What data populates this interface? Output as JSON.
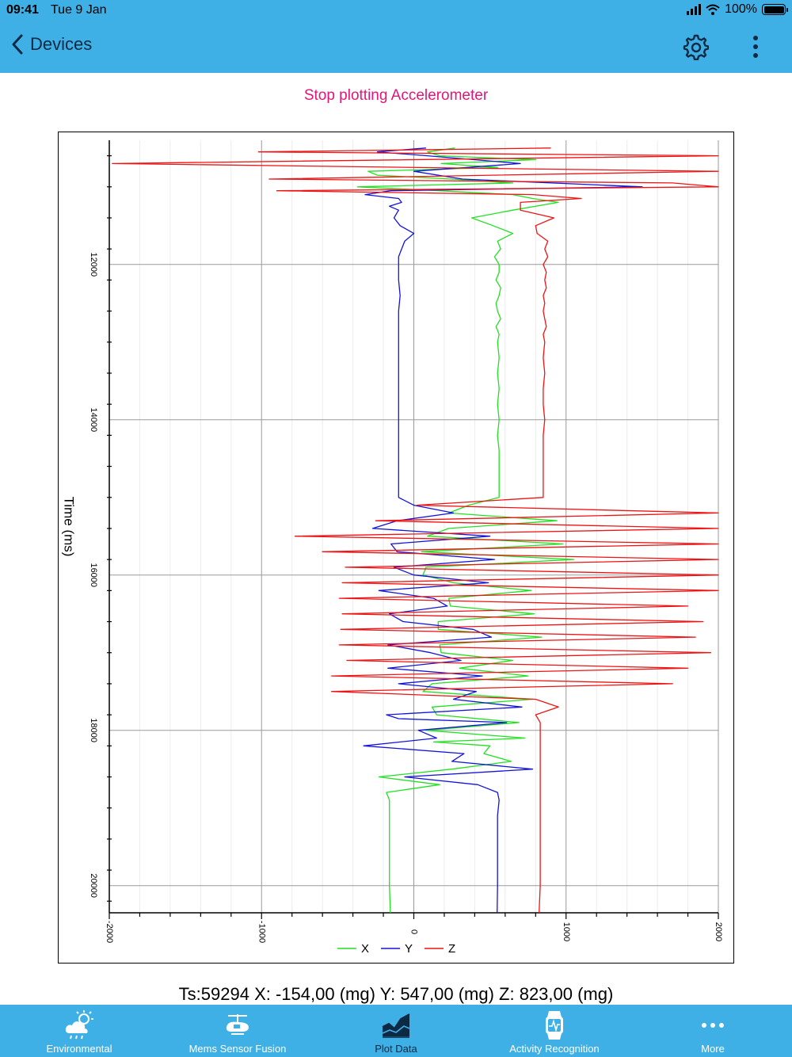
{
  "status": {
    "time": "09:41",
    "date": "Tue 9 Jan",
    "battery": "100%"
  },
  "nav": {
    "back_label": "Devices",
    "settings_icon": "gear-icon",
    "more_icon": "vertical-dots-icon"
  },
  "plot_toggle_label": "Stop plotting Accelerometer",
  "readout": "Ts:59294 X: -154,00 (mg) Y:  547,00 (mg) Z:  823,00 (mg)",
  "tabs": [
    {
      "label": "Environmental",
      "icon": "weather-cloud-icon"
    },
    {
      "label": "Mems Sensor Fusion",
      "icon": "drone-icon"
    },
    {
      "label": "Plot Data",
      "icon": "area-chart-icon",
      "active": true
    },
    {
      "label": "Activity Recognition",
      "icon": "wristband-icon"
    },
    {
      "label": "More",
      "icon": "more-dots-icon"
    }
  ],
  "chart_data": {
    "type": "line",
    "title": "",
    "xlabel": "",
    "ylabel": "Time (ms)",
    "value_axis": {
      "range": [
        -2000,
        2000
      ],
      "ticks": [
        "-2000",
        "-1000",
        "0",
        "1000",
        "2000"
      ]
    },
    "time_axis": {
      "range": [
        10400,
        20350
      ],
      "ticks": [
        "12000",
        "14000",
        "16000",
        "18000",
        "20000"
      ]
    },
    "grid": true,
    "legend_position": "bottom",
    "colors": {
      "X": "#22e022",
      "Y": "#1414d8",
      "Z": "#ee1414"
    },
    "series": [
      {
        "name": "X",
        "points": [
          [
            10500,
            270
          ],
          [
            10550,
            90
          ],
          [
            10600,
            170
          ],
          [
            10650,
            800
          ],
          [
            10700,
            180
          ],
          [
            10750,
            550
          ],
          [
            10800,
            -300
          ],
          [
            10850,
            -240
          ],
          [
            10900,
            250
          ],
          [
            10950,
            650
          ],
          [
            11000,
            -370
          ],
          [
            11050,
            170
          ],
          [
            11100,
            650
          ],
          [
            11150,
            780
          ],
          [
            11200,
            950
          ],
          [
            11300,
            650
          ],
          [
            11400,
            380
          ],
          [
            11500,
            520
          ],
          [
            11600,
            650
          ],
          [
            11700,
            550
          ],
          [
            11800,
            570
          ],
          [
            11900,
            530
          ],
          [
            12000,
            560
          ],
          [
            12100,
            560
          ],
          [
            12200,
            540
          ],
          [
            12300,
            570
          ],
          [
            12400,
            560
          ],
          [
            12500,
            540
          ],
          [
            12600,
            550
          ],
          [
            12700,
            570
          ],
          [
            12800,
            540
          ],
          [
            12900,
            560
          ],
          [
            13000,
            550
          ],
          [
            13200,
            560
          ],
          [
            13400,
            550
          ],
          [
            13600,
            560
          ],
          [
            13800,
            550
          ],
          [
            14000,
            560
          ],
          [
            14200,
            550
          ],
          [
            14400,
            560
          ],
          [
            14600,
            560
          ],
          [
            14800,
            560
          ],
          [
            15000,
            560
          ],
          [
            15100,
            360
          ],
          [
            15200,
            230
          ],
          [
            15300,
            940
          ],
          [
            15400,
            230
          ],
          [
            15500,
            90
          ],
          [
            15600,
            980
          ],
          [
            15700,
            50
          ],
          [
            15800,
            1050
          ],
          [
            15900,
            80
          ],
          [
            16000,
            60
          ],
          [
            16100,
            260
          ],
          [
            16200,
            770
          ],
          [
            16300,
            230
          ],
          [
            16400,
            240
          ],
          [
            16500,
            790
          ],
          [
            16600,
            160
          ],
          [
            16700,
            160
          ],
          [
            16800,
            840
          ],
          [
            16900,
            170
          ],
          [
            17000,
            180
          ],
          [
            17100,
            650
          ],
          [
            17200,
            300
          ],
          [
            17300,
            750
          ],
          [
            17400,
            120
          ],
          [
            17500,
            60
          ],
          [
            17600,
            780
          ],
          [
            17700,
            120
          ],
          [
            17800,
            150
          ],
          [
            17900,
            690
          ],
          [
            18000,
            80
          ],
          [
            18100,
            730
          ],
          [
            18150,
            130
          ],
          [
            18200,
            500
          ],
          [
            18300,
            460
          ],
          [
            18400,
            640
          ],
          [
            18500,
            250
          ],
          [
            18600,
            -230
          ],
          [
            18700,
            170
          ],
          [
            18800,
            -180
          ],
          [
            18900,
            -160
          ],
          [
            19200,
            -160
          ],
          [
            19600,
            -160
          ],
          [
            20000,
            -160
          ],
          [
            20350,
            -154
          ]
        ]
      },
      {
        "name": "Y",
        "points": [
          [
            10500,
            80
          ],
          [
            10550,
            -240
          ],
          [
            10600,
            90
          ],
          [
            10700,
            700
          ],
          [
            10800,
            0
          ],
          [
            10900,
            320
          ],
          [
            11000,
            1500
          ],
          [
            11050,
            -150
          ],
          [
            11100,
            -320
          ],
          [
            11150,
            -100
          ],
          [
            11200,
            -80
          ],
          [
            11250,
            -160
          ],
          [
            11300,
            -100
          ],
          [
            11400,
            -130
          ],
          [
            11500,
            -90
          ],
          [
            11600,
            0
          ],
          [
            11700,
            -60
          ],
          [
            11800,
            -80
          ],
          [
            11900,
            -100
          ],
          [
            12000,
            -100
          ],
          [
            12200,
            -100
          ],
          [
            12400,
            -90
          ],
          [
            12600,
            -100
          ],
          [
            12800,
            -100
          ],
          [
            13000,
            -100
          ],
          [
            13200,
            -100
          ],
          [
            13400,
            -100
          ],
          [
            13600,
            -100
          ],
          [
            13800,
            -100
          ],
          [
            14000,
            -100
          ],
          [
            14200,
            -100
          ],
          [
            14400,
            -100
          ],
          [
            14600,
            -100
          ],
          [
            14800,
            -100
          ],
          [
            15000,
            -100
          ],
          [
            15100,
            0
          ],
          [
            15200,
            260
          ],
          [
            15300,
            -110
          ],
          [
            15400,
            -270
          ],
          [
            15500,
            500
          ],
          [
            15600,
            -150
          ],
          [
            15700,
            -110
          ],
          [
            15800,
            530
          ],
          [
            15900,
            -130
          ],
          [
            16000,
            0
          ],
          [
            16100,
            490
          ],
          [
            16200,
            -230
          ],
          [
            16300,
            130
          ],
          [
            16400,
            220
          ],
          [
            16500,
            -160
          ],
          [
            16600,
            -70
          ],
          [
            16700,
            390
          ],
          [
            16800,
            510
          ],
          [
            16900,
            -170
          ],
          [
            17000,
            110
          ],
          [
            17100,
            310
          ],
          [
            17200,
            -170
          ],
          [
            17300,
            450
          ],
          [
            17400,
            -100
          ],
          [
            17500,
            410
          ],
          [
            17600,
            260
          ],
          [
            17700,
            710
          ],
          [
            17800,
            -180
          ],
          [
            17850,
            -100
          ],
          [
            17900,
            610
          ],
          [
            18000,
            30
          ],
          [
            18100,
            150
          ],
          [
            18200,
            -330
          ],
          [
            18300,
            330
          ],
          [
            18400,
            250
          ],
          [
            18500,
            780
          ],
          [
            18600,
            -60
          ],
          [
            18700,
            420
          ],
          [
            18800,
            550
          ],
          [
            18900,
            560
          ],
          [
            19100,
            550
          ],
          [
            19400,
            550
          ],
          [
            19700,
            550
          ],
          [
            20000,
            550
          ],
          [
            20350,
            547
          ]
        ]
      },
      {
        "name": "Z",
        "points": [
          [
            10500,
            900
          ],
          [
            10550,
            -1020
          ],
          [
            10600,
            2000
          ],
          [
            10700,
            -1980
          ],
          [
            10800,
            2000
          ],
          [
            10900,
            -950
          ],
          [
            10950,
            1700
          ],
          [
            11000,
            2000
          ],
          [
            11050,
            -900
          ],
          [
            11100,
            780
          ],
          [
            11150,
            1100
          ],
          [
            11200,
            700
          ],
          [
            11300,
            700
          ],
          [
            11400,
            920
          ],
          [
            11500,
            800
          ],
          [
            11600,
            810
          ],
          [
            11700,
            880
          ],
          [
            11800,
            860
          ],
          [
            11900,
            880
          ],
          [
            12000,
            850
          ],
          [
            12100,
            870
          ],
          [
            12200,
            860
          ],
          [
            12300,
            870
          ],
          [
            12400,
            850
          ],
          [
            12500,
            860
          ],
          [
            12600,
            850
          ],
          [
            12700,
            860
          ],
          [
            12800,
            870
          ],
          [
            12900,
            850
          ],
          [
            13000,
            860
          ],
          [
            13200,
            850
          ],
          [
            13400,
            860
          ],
          [
            13600,
            850
          ],
          [
            13800,
            850
          ],
          [
            14000,
            860
          ],
          [
            14200,
            850
          ],
          [
            14400,
            850
          ],
          [
            14600,
            850
          ],
          [
            14800,
            850
          ],
          [
            15000,
            850
          ],
          [
            15100,
            20
          ],
          [
            15200,
            2000
          ],
          [
            15300,
            -250
          ],
          [
            15400,
            2000
          ],
          [
            15500,
            -780
          ],
          [
            15600,
            2000
          ],
          [
            15700,
            -600
          ],
          [
            15800,
            2000
          ],
          [
            15900,
            -450
          ],
          [
            16000,
            2000
          ],
          [
            16100,
            -470
          ],
          [
            16200,
            2000
          ],
          [
            16300,
            -490
          ],
          [
            16400,
            1800
          ],
          [
            16500,
            -470
          ],
          [
            16600,
            1900
          ],
          [
            16700,
            -480
          ],
          [
            16800,
            1850
          ],
          [
            16900,
            -490
          ],
          [
            17000,
            1950
          ],
          [
            17100,
            -440
          ],
          [
            17200,
            1800
          ],
          [
            17300,
            -540
          ],
          [
            17400,
            1700
          ],
          [
            17500,
            -540
          ],
          [
            17600,
            800
          ],
          [
            17700,
            950
          ],
          [
            17800,
            800
          ],
          [
            17900,
            830
          ],
          [
            18000,
            830
          ],
          [
            18200,
            830
          ],
          [
            18400,
            830
          ],
          [
            18600,
            830
          ],
          [
            18800,
            830
          ],
          [
            19000,
            830
          ],
          [
            19200,
            830
          ],
          [
            19600,
            830
          ],
          [
            20000,
            830
          ],
          [
            20350,
            823
          ]
        ]
      }
    ]
  }
}
